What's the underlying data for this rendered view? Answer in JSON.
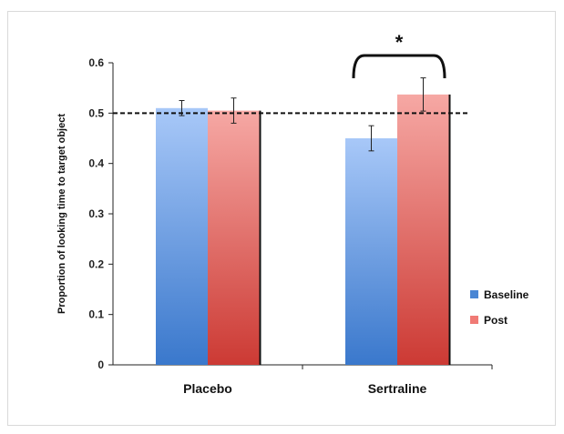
{
  "chart_data": {
    "type": "bar",
    "categories": [
      "Placebo",
      "Sertraline"
    ],
    "series": [
      {
        "name": "Baseline",
        "values": [
          0.51,
          0.45
        ],
        "errors": [
          0.015,
          0.025
        ],
        "color": "#4a86d4"
      },
      {
        "name": "Post",
        "values": [
          0.505,
          0.537
        ],
        "errors": [
          0.025,
          0.033
        ],
        "color": "#d9453f"
      }
    ],
    "ylabel": "Proportion of looking time to target object",
    "xlabel": "",
    "ylim": [
      0,
      0.6
    ],
    "yticks": [
      0,
      0.1,
      0.2,
      0.3,
      0.4,
      0.5,
      0.6
    ],
    "ytick_labels": [
      "0",
      "0.1",
      "0.2",
      "0.3",
      "0.4",
      "0.5",
      "0.6"
    ],
    "reference_line": {
      "y": 0.5,
      "style": "dashed"
    },
    "annotation": {
      "text": "*",
      "category": "Sertraline"
    },
    "legend": "right",
    "grid": false
  }
}
